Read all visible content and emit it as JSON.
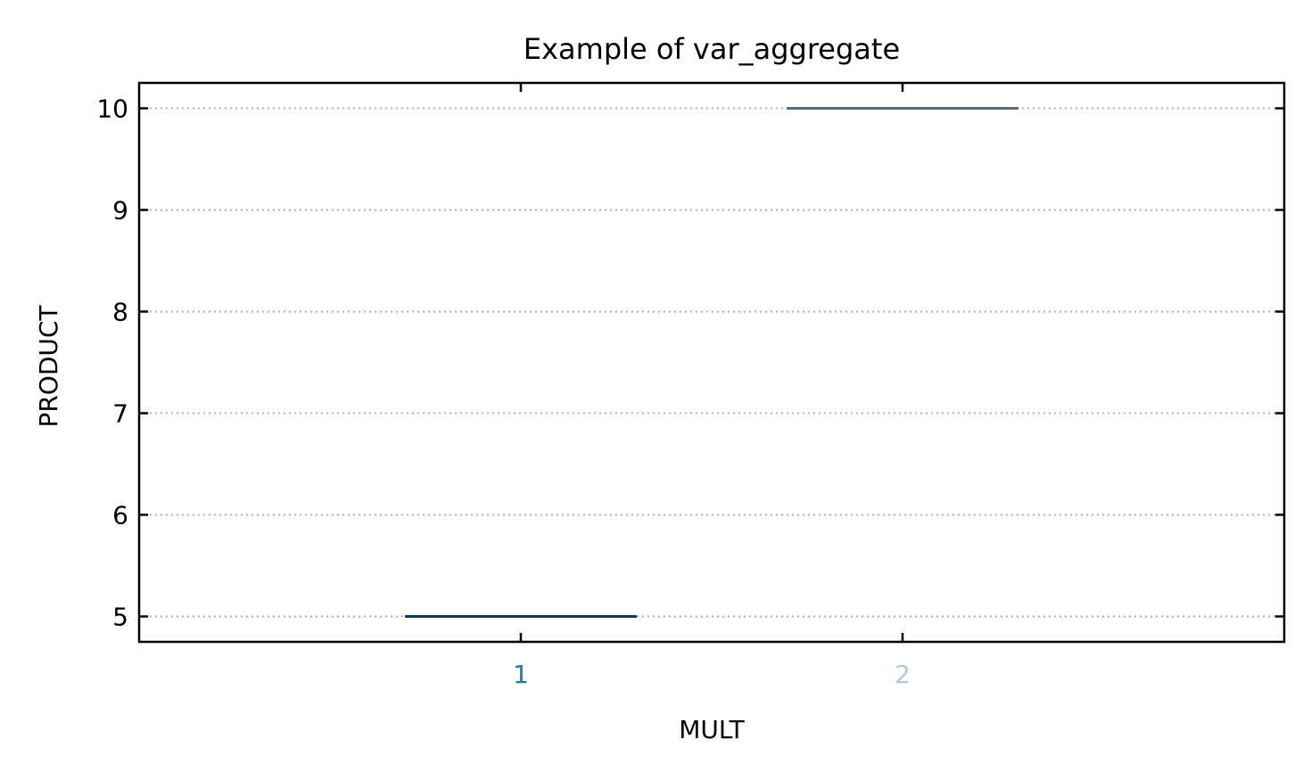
{
  "chart_data": {
    "type": "box",
    "title": "Example of var_aggregate",
    "xlabel": "MULT",
    "ylabel": "PRODUCT",
    "categories": [
      "1",
      "2"
    ],
    "series": [
      {
        "category": "1",
        "median": 5,
        "q1": 5,
        "q3": 5,
        "whisker_low": 5,
        "whisker_high": 5,
        "color": "#0f3a5e"
      },
      {
        "category": "2",
        "median": 10,
        "q1": 10,
        "q3": 10,
        "whisker_low": 10,
        "whisker_high": 10,
        "color": "#566a80"
      }
    ],
    "xtick_colors": [
      "#1f77b4",
      "#aec7e8"
    ],
    "yticks": [
      "5",
      "6",
      "7",
      "8",
      "9",
      "10"
    ],
    "ylim": [
      4.75,
      10.25
    ],
    "xlim": [
      0,
      3
    ],
    "grid": "y-dotted"
  }
}
